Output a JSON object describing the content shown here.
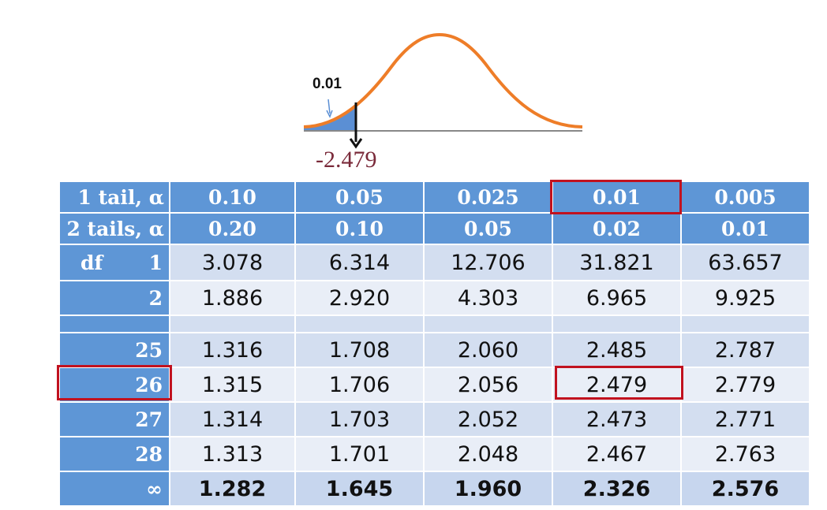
{
  "figure": {
    "tail_area_label": "0.01",
    "critical_value_label": "-2.479",
    "colors": {
      "curve": "#ee7d28",
      "shaded_tail": "#5b8fd4",
      "axis": "#888888",
      "highlight": "#c1121f",
      "header_bg": "#5e96d6"
    }
  },
  "table": {
    "header_one_tail": {
      "label": "1 tail, α",
      "values": [
        "0.10",
        "0.05",
        "0.025",
        "0.01",
        "0.005"
      ]
    },
    "header_two_tails": {
      "label": "2 tails, α",
      "values": [
        "0.20",
        "0.10",
        "0.05",
        "0.02",
        "0.01"
      ]
    },
    "df_label": "df",
    "rows": [
      {
        "df": "1",
        "values": [
          "3.078",
          "6.314",
          "12.706",
          "31.821",
          "63.657"
        ]
      },
      {
        "df": "2",
        "values": [
          "1.886",
          "2.920",
          "4.303",
          "6.965",
          "9.925"
        ]
      },
      {
        "df": "",
        "values": [
          "",
          "",
          "",
          "",
          ""
        ]
      },
      {
        "df": "25",
        "values": [
          "1.316",
          "1.708",
          "2.060",
          "2.485",
          "2.787"
        ]
      },
      {
        "df": "26",
        "values": [
          "1.315",
          "1.706",
          "2.056",
          "2.479",
          "2.779"
        ]
      },
      {
        "df": "27",
        "values": [
          "1.314",
          "1.703",
          "2.052",
          "2.473",
          "2.771"
        ]
      },
      {
        "df": "28",
        "values": [
          "1.313",
          "1.701",
          "2.048",
          "2.467",
          "2.763"
        ]
      },
      {
        "df": "∞",
        "values": [
          "1.282",
          "1.645",
          "1.960",
          "2.326",
          "2.576"
        ]
      }
    ],
    "highlighted": {
      "alpha_one_tail": "0.01",
      "df": "26",
      "value": "2.479"
    }
  }
}
